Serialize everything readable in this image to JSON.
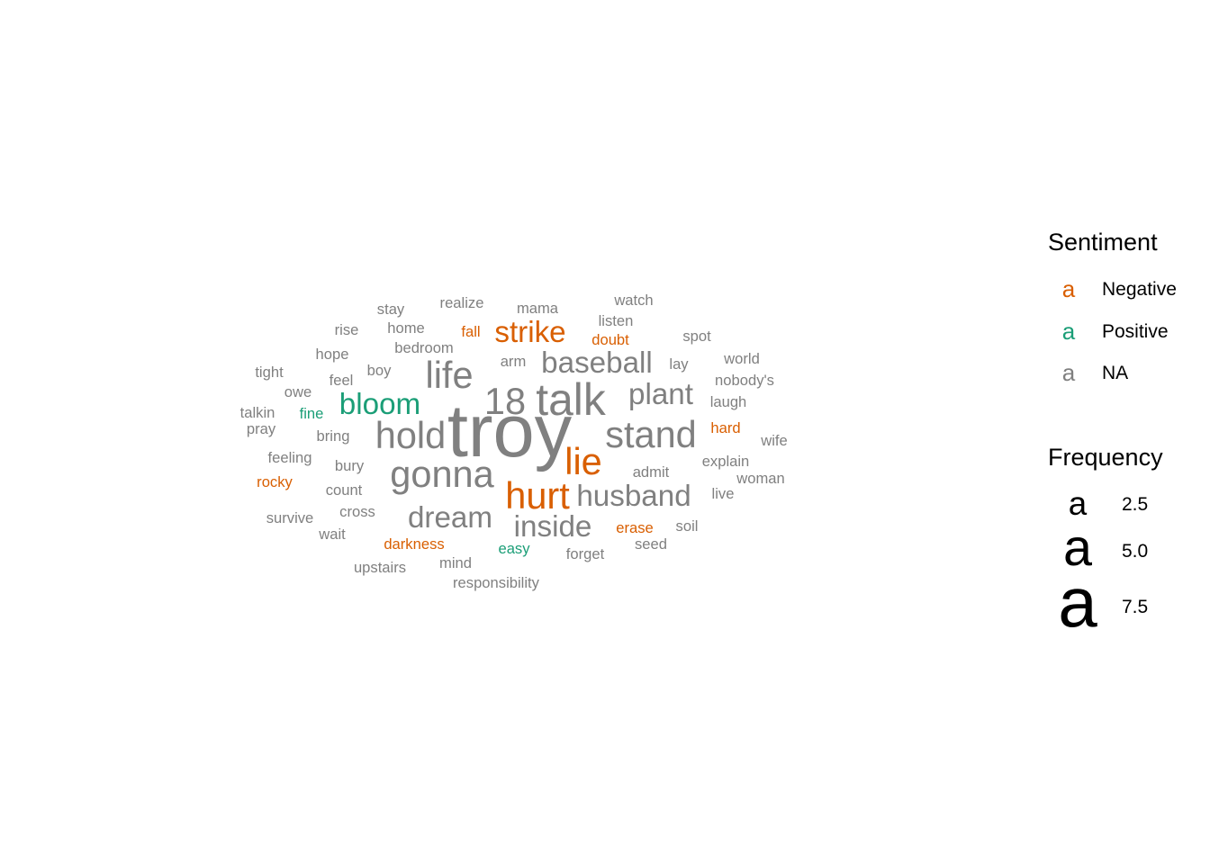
{
  "chart_data": {
    "type": "wordcloud",
    "colors": {
      "Negative": "#D95F02",
      "Positive": "#1B9E77",
      "NA": "#808080"
    },
    "words": [
      {
        "word": "troy",
        "freq": 10,
        "sentiment": "NA"
      },
      {
        "word": "talk",
        "freq": 6,
        "sentiment": "NA"
      },
      {
        "word": "18",
        "freq": 5,
        "sentiment": "NA"
      },
      {
        "word": "hold",
        "freq": 5,
        "sentiment": "NA"
      },
      {
        "word": "gonna",
        "freq": 5,
        "sentiment": "NA"
      },
      {
        "word": "stand",
        "freq": 5,
        "sentiment": "NA"
      },
      {
        "word": "lie",
        "freq": 5,
        "sentiment": "Negative"
      },
      {
        "word": "hurt",
        "freq": 5,
        "sentiment": "Negative"
      },
      {
        "word": "life",
        "freq": 5,
        "sentiment": "NA"
      },
      {
        "word": "baseball",
        "freq": 4,
        "sentiment": "NA"
      },
      {
        "word": "plant",
        "freq": 4,
        "sentiment": "NA"
      },
      {
        "word": "husband",
        "freq": 4,
        "sentiment": "NA"
      },
      {
        "word": "dream",
        "freq": 4,
        "sentiment": "NA"
      },
      {
        "word": "inside",
        "freq": 4,
        "sentiment": "NA"
      },
      {
        "word": "strike",
        "freq": 4,
        "sentiment": "Negative"
      },
      {
        "word": "bloom",
        "freq": 4,
        "sentiment": "Positive"
      },
      {
        "word": "stay",
        "freq": 2,
        "sentiment": "NA"
      },
      {
        "word": "realize",
        "freq": 2,
        "sentiment": "NA"
      },
      {
        "word": "mama",
        "freq": 2,
        "sentiment": "NA"
      },
      {
        "word": "watch",
        "freq": 2,
        "sentiment": "NA"
      },
      {
        "word": "listen",
        "freq": 2,
        "sentiment": "NA"
      },
      {
        "word": "rise",
        "freq": 2,
        "sentiment": "NA"
      },
      {
        "word": "home",
        "freq": 2,
        "sentiment": "NA"
      },
      {
        "word": "fall",
        "freq": 2,
        "sentiment": "Negative"
      },
      {
        "word": "doubt",
        "freq": 2,
        "sentiment": "Negative"
      },
      {
        "word": "spot",
        "freq": 2,
        "sentiment": "NA"
      },
      {
        "word": "hope",
        "freq": 2,
        "sentiment": "NA"
      },
      {
        "word": "bedroom",
        "freq": 2,
        "sentiment": "NA"
      },
      {
        "word": "world",
        "freq": 2,
        "sentiment": "NA"
      },
      {
        "word": "arm",
        "freq": 2,
        "sentiment": "NA"
      },
      {
        "word": "lay",
        "freq": 2,
        "sentiment": "NA"
      },
      {
        "word": "tight",
        "freq": 2,
        "sentiment": "NA"
      },
      {
        "word": "boy",
        "freq": 2,
        "sentiment": "NA"
      },
      {
        "word": "feel",
        "freq": 2,
        "sentiment": "NA"
      },
      {
        "word": "nobody's",
        "freq": 2,
        "sentiment": "NA"
      },
      {
        "word": "owe",
        "freq": 2,
        "sentiment": "NA"
      },
      {
        "word": "laugh",
        "freq": 2,
        "sentiment": "NA"
      },
      {
        "word": "talkin",
        "freq": 2,
        "sentiment": "NA"
      },
      {
        "word": "fine",
        "freq": 2,
        "sentiment": "Positive"
      },
      {
        "word": "pray",
        "freq": 2,
        "sentiment": "NA"
      },
      {
        "word": "hard",
        "freq": 2,
        "sentiment": "Negative"
      },
      {
        "word": "bring",
        "freq": 2,
        "sentiment": "NA"
      },
      {
        "word": "wife",
        "freq": 2,
        "sentiment": "NA"
      },
      {
        "word": "feeling",
        "freq": 2,
        "sentiment": "NA"
      },
      {
        "word": "explain",
        "freq": 2,
        "sentiment": "NA"
      },
      {
        "word": "bury",
        "freq": 2,
        "sentiment": "NA"
      },
      {
        "word": "admit",
        "freq": 2,
        "sentiment": "NA"
      },
      {
        "word": "woman",
        "freq": 2,
        "sentiment": "NA"
      },
      {
        "word": "rocky",
        "freq": 2,
        "sentiment": "Negative"
      },
      {
        "word": "count",
        "freq": 2,
        "sentiment": "NA"
      },
      {
        "word": "live",
        "freq": 2,
        "sentiment": "NA"
      },
      {
        "word": "survive",
        "freq": 2,
        "sentiment": "NA"
      },
      {
        "word": "cross",
        "freq": 2,
        "sentiment": "NA"
      },
      {
        "word": "erase",
        "freq": 2,
        "sentiment": "Negative"
      },
      {
        "word": "soil",
        "freq": 2,
        "sentiment": "NA"
      },
      {
        "word": "wait",
        "freq": 2,
        "sentiment": "NA"
      },
      {
        "word": "darkness",
        "freq": 2,
        "sentiment": "Negative"
      },
      {
        "word": "easy",
        "freq": 2,
        "sentiment": "Positive"
      },
      {
        "word": "seed",
        "freq": 2,
        "sentiment": "NA"
      },
      {
        "word": "forget",
        "freq": 2,
        "sentiment": "NA"
      },
      {
        "word": "upstairs",
        "freq": 2,
        "sentiment": "NA"
      },
      {
        "word": "mind",
        "freq": 2,
        "sentiment": "NA"
      },
      {
        "word": "responsibility",
        "freq": 2,
        "sentiment": "NA"
      }
    ],
    "legend": {
      "position": "right",
      "sentiment": {
        "title": "Sentiment",
        "key_glyph": "a",
        "items": [
          {
            "label": "Negative",
            "sentiment": "Negative"
          },
          {
            "label": "Positive",
            "sentiment": "Positive"
          },
          {
            "label": "NA",
            "sentiment": "NA"
          }
        ]
      },
      "frequency": {
        "title": "Frequency",
        "key_glyph": "a",
        "items": [
          {
            "label": "2.5",
            "value": 2.5
          },
          {
            "label": "5.0",
            "value": 5.0
          },
          {
            "label": "7.5",
            "value": 7.5
          }
        ]
      }
    }
  }
}
